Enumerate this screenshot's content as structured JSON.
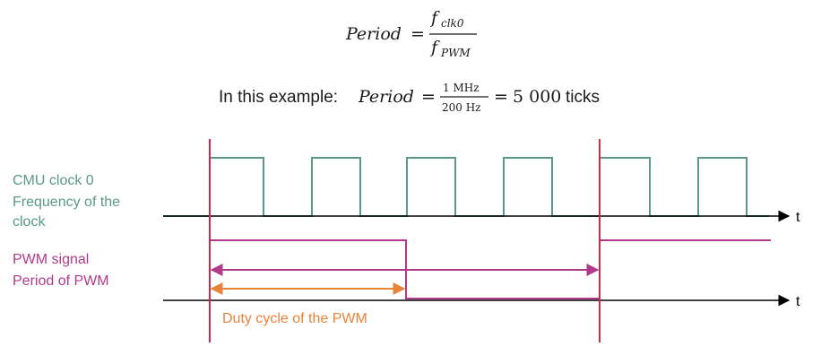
{
  "formula_general": {
    "lhs": "Period",
    "equals": "=",
    "numerator": "f",
    "numerator_sub": "clk0",
    "denominator": "f",
    "denominator_sub": "PWM"
  },
  "formula_example": {
    "prefix": "In this example:",
    "lhs": "Period",
    "equals": "=",
    "numerator": "1 MHz",
    "denominator": "200 Hz",
    "equals2": "=",
    "result": "5 000",
    "result_unit": "ticks"
  },
  "labels": {
    "cmu_line1": "CMU clock 0",
    "cmu_line2": "Frequency of the",
    "cmu_line3": "clock",
    "pwm_line1": "PWM signal",
    "pwm_line2": "Period of PWM",
    "duty": "Duty cycle of the PWM",
    "t_axis_top": "t",
    "t_axis_bottom": "t"
  },
  "colors": {
    "clock": "#5a9a84",
    "pwm": "#b23a8a",
    "marker": "#cc2a4a",
    "duty": "#e8843a",
    "text": "#1a1a1a",
    "axis": "#000000"
  }
}
